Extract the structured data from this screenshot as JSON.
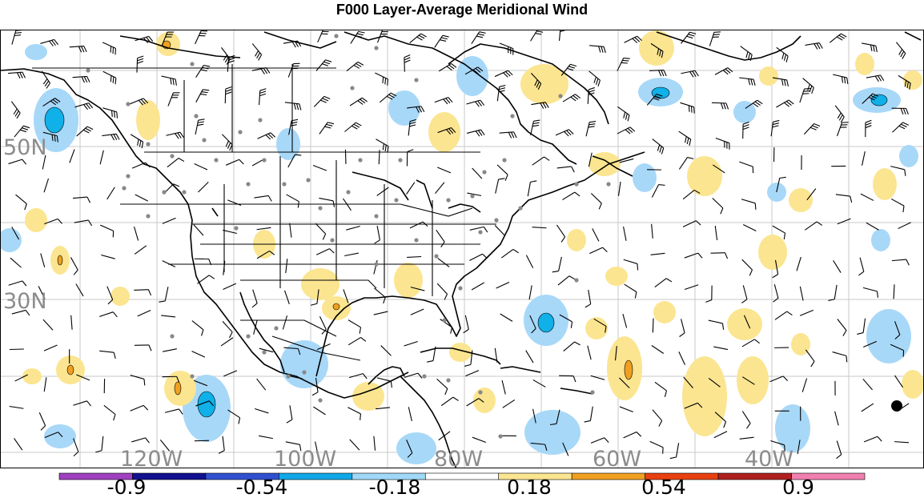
{
  "title": "F000 Layer-Average Meridional Wind",
  "lat_labels": [
    "50N",
    "30N"
  ],
  "lon_labels": [
    "120W",
    "100W",
    "80W",
    "60W",
    "40W"
  ],
  "colorbar": {
    "ticks": [
      "-0.9",
      "-0.54",
      "-0.18",
      "0.18",
      "0.54",
      "0.9"
    ],
    "colors": [
      "#a040c0",
      "#101090",
      "#3050d0",
      "#10a8e8",
      "#a0d8f8",
      "#ffffff",
      "#fbe590",
      "#f0a020",
      "#e84010",
      "#b02020",
      "#f080b0"
    ]
  },
  "fill_colors": {
    "light_blue": "#a8d8f8",
    "mid_blue": "#10b0e8",
    "light_yellow": "#fbe590",
    "orange": "#f0a020",
    "marker": "#888888"
  }
}
